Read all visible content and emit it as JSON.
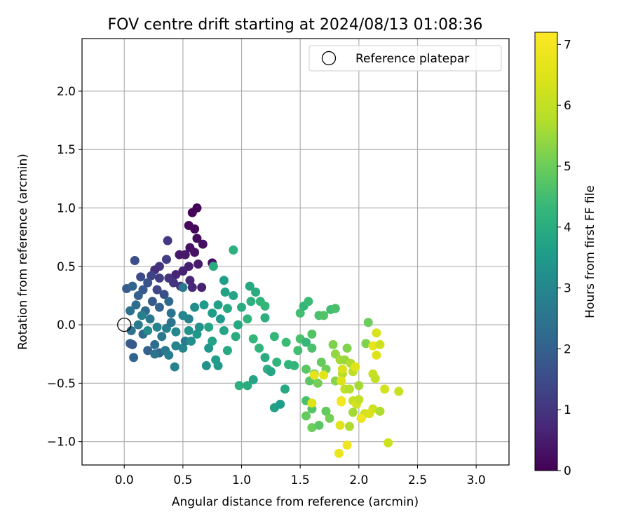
{
  "chart_data": {
    "type": "scatter",
    "title": "FOV centre drift starting at 2024/08/13 01:08:36",
    "xlabel": "Angular distance from reference (arcmin)",
    "ylabel": "Rotation from reference (arcmin)",
    "xlim": [
      -0.36,
      3.28
    ],
    "ylim": [
      -1.2,
      2.45
    ],
    "xticks": [
      "0.0",
      "0.5",
      "1.0",
      "1.5",
      "2.0",
      "2.5",
      "3.0"
    ],
    "yticks": [
      "−1.0",
      "−0.5",
      "0.0",
      "0.5",
      "1.0",
      "1.5",
      "2.0"
    ],
    "grid": true,
    "legend": {
      "position": "upper-right",
      "label": "Reference platepar"
    },
    "reference_point": {
      "x": 0.0,
      "y": 0.0
    },
    "colorbar": {
      "label": "Hours from first FF file",
      "colormap": "viridis",
      "range": [
        0,
        7.2
      ],
      "ticks": [
        "0",
        "1",
        "2",
        "3",
        "4",
        "5",
        "6",
        "7"
      ]
    },
    "points": [
      {
        "x": 0.62,
        "y": 1.0,
        "t": 0.05
      },
      {
        "x": 0.58,
        "y": 0.96,
        "t": 0.1
      },
      {
        "x": 0.55,
        "y": 0.85,
        "t": 0.12
      },
      {
        "x": 0.6,
        "y": 0.82,
        "t": 0.15
      },
      {
        "x": 0.62,
        "y": 0.74,
        "t": 0.2
      },
      {
        "x": 0.67,
        "y": 0.69,
        "t": 0.25
      },
      {
        "x": 0.56,
        "y": 0.66,
        "t": 0.3
      },
      {
        "x": 0.6,
        "y": 0.62,
        "t": 0.35
      },
      {
        "x": 0.52,
        "y": 0.6,
        "t": 0.4
      },
      {
        "x": 0.47,
        "y": 0.6,
        "t": 0.45
      },
      {
        "x": 0.63,
        "y": 0.52,
        "t": 0.5
      },
      {
        "x": 0.55,
        "y": 0.5,
        "t": 0.55
      },
      {
        "x": 0.75,
        "y": 0.53,
        "t": 0.3
      },
      {
        "x": 0.5,
        "y": 0.46,
        "t": 0.6
      },
      {
        "x": 0.44,
        "y": 0.43,
        "t": 0.65
      },
      {
        "x": 0.56,
        "y": 0.38,
        "t": 0.7
      },
      {
        "x": 0.66,
        "y": 0.32,
        "t": 0.6
      },
      {
        "x": 0.58,
        "y": 0.32,
        "t": 0.75
      },
      {
        "x": 0.48,
        "y": 0.33,
        "t": 0.8
      },
      {
        "x": 0.37,
        "y": 0.72,
        "t": 1.1
      },
      {
        "x": 0.36,
        "y": 0.56,
        "t": 1.2
      },
      {
        "x": 0.3,
        "y": 0.5,
        "t": 1.0
      },
      {
        "x": 0.26,
        "y": 0.47,
        "t": 0.9
      },
      {
        "x": 0.23,
        "y": 0.42,
        "t": 1.3
      },
      {
        "x": 0.14,
        "y": 0.41,
        "t": 1.5
      },
      {
        "x": 0.09,
        "y": 0.55,
        "t": 1.6
      },
      {
        "x": 0.3,
        "y": 0.4,
        "t": 1.2
      },
      {
        "x": 0.38,
        "y": 0.4,
        "t": 0.95
      },
      {
        "x": 0.42,
        "y": 0.36,
        "t": 1.0
      },
      {
        "x": 0.2,
        "y": 0.36,
        "t": 1.7
      },
      {
        "x": 0.16,
        "y": 0.3,
        "t": 1.8
      },
      {
        "x": 0.12,
        "y": 0.25,
        "t": 2.0
      },
      {
        "x": 0.02,
        "y": 0.31,
        "t": 1.9
      },
      {
        "x": 0.07,
        "y": 0.33,
        "t": 2.1
      },
      {
        "x": 0.28,
        "y": 0.3,
        "t": 1.4
      },
      {
        "x": 0.34,
        "y": 0.26,
        "t": 1.6
      },
      {
        "x": 0.24,
        "y": 0.2,
        "t": 1.8
      },
      {
        "x": 0.1,
        "y": 0.17,
        "t": 2.3
      },
      {
        "x": 0.05,
        "y": 0.12,
        "t": 2.4
      },
      {
        "x": 0.18,
        "y": 0.12,
        "t": 2.2
      },
      {
        "x": 0.3,
        "y": 0.15,
        "t": 2.0
      },
      {
        "x": 0.38,
        "y": 0.2,
        "t": 2.2
      },
      {
        "x": 0.5,
        "y": 0.32,
        "t": 2.6
      },
      {
        "x": 0.4,
        "y": 0.1,
        "t": 2.5
      },
      {
        "x": 0.22,
        "y": 0.05,
        "t": 2.6
      },
      {
        "x": 0.12,
        "y": 0.0,
        "t": 2.7
      },
      {
        "x": 0.06,
        "y": -0.05,
        "t": 2.4
      },
      {
        "x": 0.16,
        "y": -0.08,
        "t": 2.2
      },
      {
        "x": 0.05,
        "y": -0.16,
        "t": 2.0
      },
      {
        "x": 0.07,
        "y": -0.17,
        "t": 1.8
      },
      {
        "x": 0.08,
        "y": -0.28,
        "t": 2.1
      },
      {
        "x": 0.2,
        "y": -0.22,
        "t": 2.0
      },
      {
        "x": 0.26,
        "y": -0.17,
        "t": 2.3
      },
      {
        "x": 0.3,
        "y": -0.24,
        "t": 2.1
      },
      {
        "x": 0.26,
        "y": -0.25,
        "t": 2.5
      },
      {
        "x": 0.35,
        "y": -0.22,
        "t": 2.6
      },
      {
        "x": 0.38,
        "y": -0.26,
        "t": 2.8
      },
      {
        "x": 0.44,
        "y": -0.18,
        "t": 2.9
      },
      {
        "x": 0.5,
        "y": -0.2,
        "t": 3.0
      },
      {
        "x": 0.52,
        "y": -0.14,
        "t": 2.7
      },
      {
        "x": 0.43,
        "y": -0.36,
        "t": 2.9
      },
      {
        "x": 0.32,
        "y": -0.1,
        "t": 2.6
      },
      {
        "x": 0.36,
        "y": -0.03,
        "t": 2.8
      },
      {
        "x": 0.44,
        "y": -0.06,
        "t": 3.0
      },
      {
        "x": 0.4,
        "y": 0.02,
        "t": 2.5
      },
      {
        "x": 0.28,
        "y": -0.02,
        "t": 2.9
      },
      {
        "x": 0.2,
        "y": -0.05,
        "t": 3.1
      },
      {
        "x": 0.15,
        "y": 0.08,
        "t": 2.8
      },
      {
        "x": 0.55,
        "y": 0.05,
        "t": 2.9
      },
      {
        "x": 0.6,
        "y": 0.15,
        "t": 3.2
      },
      {
        "x": 0.5,
        "y": 0.08,
        "t": 3.0
      },
      {
        "x": 0.55,
        "y": -0.05,
        "t": 3.3
      },
      {
        "x": 0.57,
        "y": -0.14,
        "t": 3.2
      },
      {
        "x": 0.62,
        "y": -0.08,
        "t": 3.4
      },
      {
        "x": 0.64,
        "y": -0.02,
        "t": 3.3
      },
      {
        "x": 0.68,
        "y": 0.17,
        "t": 3.5
      },
      {
        "x": 0.72,
        "y": -0.2,
        "t": 3.4
      },
      {
        "x": 0.7,
        "y": -0.35,
        "t": 3.3
      },
      {
        "x": 0.78,
        "y": -0.3,
        "t": 3.6
      },
      {
        "x": 0.8,
        "y": -0.35,
        "t": 3.5
      },
      {
        "x": 0.75,
        "y": -0.14,
        "t": 3.7
      },
      {
        "x": 0.72,
        "y": -0.02,
        "t": 3.8
      },
      {
        "x": 0.75,
        "y": 0.1,
        "t": 3.6
      },
      {
        "x": 0.8,
        "y": 0.17,
        "t": 3.7
      },
      {
        "x": 0.82,
        "y": 0.05,
        "t": 3.5
      },
      {
        "x": 0.85,
        "y": -0.05,
        "t": 3.8
      },
      {
        "x": 0.88,
        "y": 0.14,
        "t": 3.9
      },
      {
        "x": 0.86,
        "y": 0.28,
        "t": 3.7
      },
      {
        "x": 0.85,
        "y": 0.38,
        "t": 3.6
      },
      {
        "x": 0.76,
        "y": 0.5,
        "t": 4.0
      },
      {
        "x": 0.93,
        "y": 0.64,
        "t": 4.1
      },
      {
        "x": 0.93,
        "y": 0.25,
        "t": 3.8
      },
      {
        "x": 0.88,
        "y": -0.22,
        "t": 3.9
      },
      {
        "x": 0.95,
        "y": -0.1,
        "t": 4.0
      },
      {
        "x": 0.97,
        "y": 0.0,
        "t": 3.9
      },
      {
        "x": 1.0,
        "y": 0.15,
        "t": 4.0
      },
      {
        "x": 0.98,
        "y": -0.52,
        "t": 4.1
      },
      {
        "x": 1.05,
        "y": -0.52,
        "t": 4.0
      },
      {
        "x": 1.1,
        "y": -0.47,
        "t": 3.8
      },
      {
        "x": 1.05,
        "y": 0.05,
        "t": 4.2
      },
      {
        "x": 1.08,
        "y": 0.2,
        "t": 4.1
      },
      {
        "x": 1.07,
        "y": 0.33,
        "t": 3.9
      },
      {
        "x": 1.12,
        "y": 0.28,
        "t": 4.0
      },
      {
        "x": 1.16,
        "y": 0.2,
        "t": 4.2
      },
      {
        "x": 1.2,
        "y": 0.16,
        "t": 4.3
      },
      {
        "x": 1.2,
        "y": 0.06,
        "t": 4.1
      },
      {
        "x": 1.1,
        "y": -0.12,
        "t": 4.3
      },
      {
        "x": 1.15,
        "y": -0.2,
        "t": 4.2
      },
      {
        "x": 1.2,
        "y": -0.28,
        "t": 4.0
      },
      {
        "x": 1.22,
        "y": -0.38,
        "t": 4.1
      },
      {
        "x": 1.3,
        "y": -0.32,
        "t": 4.2
      },
      {
        "x": 1.25,
        "y": -0.4,
        "t": 3.8
      },
      {
        "x": 1.28,
        "y": -0.71,
        "t": 3.7
      },
      {
        "x": 1.33,
        "y": -0.68,
        "t": 3.6
      },
      {
        "x": 1.37,
        "y": -0.55,
        "t": 3.9
      },
      {
        "x": 1.28,
        "y": -0.1,
        "t": 4.3
      },
      {
        "x": 1.38,
        "y": -0.15,
        "t": 4.4
      },
      {
        "x": 1.4,
        "y": -0.34,
        "t": 4.2
      },
      {
        "x": 1.45,
        "y": -0.35,
        "t": 4.3
      },
      {
        "x": 1.48,
        "y": -0.22,
        "t": 4.5
      },
      {
        "x": 1.5,
        "y": -0.12,
        "t": 4.6
      },
      {
        "x": 1.55,
        "y": -0.15,
        "t": 4.3
      },
      {
        "x": 1.5,
        "y": 0.1,
        "t": 4.5
      },
      {
        "x": 1.53,
        "y": 0.16,
        "t": 4.3
      },
      {
        "x": 1.57,
        "y": 0.2,
        "t": 4.4
      },
      {
        "x": 1.6,
        "y": -0.08,
        "t": 4.7
      },
      {
        "x": 1.6,
        "y": -0.2,
        "t": 4.6
      },
      {
        "x": 1.55,
        "y": -0.38,
        "t": 4.8
      },
      {
        "x": 1.62,
        "y": -0.42,
        "t": 4.9
      },
      {
        "x": 1.66,
        "y": 0.08,
        "t": 4.6
      },
      {
        "x": 1.7,
        "y": 0.08,
        "t": 4.7
      },
      {
        "x": 1.76,
        "y": 0.13,
        "t": 4.5
      },
      {
        "x": 1.8,
        "y": 0.14,
        "t": 4.6
      },
      {
        "x": 1.68,
        "y": -0.32,
        "t": 4.9
      },
      {
        "x": 1.72,
        "y": -0.38,
        "t": 5.0
      },
      {
        "x": 1.58,
        "y": -0.48,
        "t": 4.8
      },
      {
        "x": 1.65,
        "y": -0.5,
        "t": 5.1
      },
      {
        "x": 1.55,
        "y": -0.65,
        "t": 4.6
      },
      {
        "x": 1.6,
        "y": -0.72,
        "t": 4.7
      },
      {
        "x": 1.55,
        "y": -0.78,
        "t": 4.9
      },
      {
        "x": 1.6,
        "y": -0.88,
        "t": 5.0
      },
      {
        "x": 1.66,
        "y": -0.86,
        "t": 4.8
      },
      {
        "x": 1.72,
        "y": -0.74,
        "t": 4.9
      },
      {
        "x": 1.75,
        "y": -0.8,
        "t": 5.1
      },
      {
        "x": 1.8,
        "y": -0.48,
        "t": 5.3
      },
      {
        "x": 1.78,
        "y": -0.17,
        "t": 5.2
      },
      {
        "x": 1.8,
        "y": -0.25,
        "t": 5.4
      },
      {
        "x": 1.84,
        "y": -0.3,
        "t": 5.6
      },
      {
        "x": 1.86,
        "y": -0.42,
        "t": 5.8
      },
      {
        "x": 1.88,
        "y": -0.3,
        "t": 5.5
      },
      {
        "x": 1.9,
        "y": -0.2,
        "t": 5.2
      },
      {
        "x": 1.93,
        "y": -0.33,
        "t": 5.7
      },
      {
        "x": 1.95,
        "y": -0.4,
        "t": 5.9
      },
      {
        "x": 1.88,
        "y": -0.55,
        "t": 6.0
      },
      {
        "x": 1.92,
        "y": -0.55,
        "t": 5.8
      },
      {
        "x": 2.0,
        "y": -0.52,
        "t": 5.6
      },
      {
        "x": 1.95,
        "y": -0.65,
        "t": 6.1
      },
      {
        "x": 1.98,
        "y": -0.68,
        "t": 6.3
      },
      {
        "x": 2.0,
        "y": -0.64,
        "t": 6.0
      },
      {
        "x": 1.95,
        "y": -0.75,
        "t": 5.6
      },
      {
        "x": 2.02,
        "y": -0.8,
        "t": 5.5
      },
      {
        "x": 2.05,
        "y": -0.76,
        "t": 6.2
      },
      {
        "x": 1.92,
        "y": -0.87,
        "t": 5.7
      },
      {
        "x": 1.84,
        "y": -0.86,
        "t": 6.6
      },
      {
        "x": 1.9,
        "y": -1.03,
        "t": 6.9
      },
      {
        "x": 1.83,
        "y": -1.1,
        "t": 6.8
      },
      {
        "x": 1.85,
        "y": -0.65,
        "t": 6.7
      },
      {
        "x": 1.85,
        "y": -0.48,
        "t": 6.5
      },
      {
        "x": 1.86,
        "y": -0.38,
        "t": 6.4
      },
      {
        "x": 1.97,
        "y": -0.36,
        "t": 6.6
      },
      {
        "x": 2.08,
        "y": 0.02,
        "t": 5.0
      },
      {
        "x": 2.06,
        "y": -0.16,
        "t": 5.2
      },
      {
        "x": 2.12,
        "y": -0.18,
        "t": 6.7
      },
      {
        "x": 2.15,
        "y": -0.07,
        "t": 6.4
      },
      {
        "x": 2.18,
        "y": -0.17,
        "t": 6.2
      },
      {
        "x": 2.15,
        "y": -0.26,
        "t": 6.5
      },
      {
        "x": 2.12,
        "y": -0.42,
        "t": 6.1
      },
      {
        "x": 2.14,
        "y": -0.46,
        "t": 6.0
      },
      {
        "x": 2.22,
        "y": -0.55,
        "t": 6.3
      },
      {
        "x": 2.12,
        "y": -0.72,
        "t": 6.2
      },
      {
        "x": 2.09,
        "y": -0.76,
        "t": 6.4
      },
      {
        "x": 2.18,
        "y": -0.74,
        "t": 5.7
      },
      {
        "x": 2.25,
        "y": -1.01,
        "t": 6.2
      },
      {
        "x": 2.34,
        "y": -0.57,
        "t": 6.1
      },
      {
        "x": 1.7,
        "y": -0.43,
        "t": 6.6
      },
      {
        "x": 1.62,
        "y": -0.43,
        "t": 6.7
      },
      {
        "x": 1.6,
        "y": -0.67,
        "t": 6.5
      },
      {
        "x": 2.02,
        "y": -0.8,
        "t": 6.9
      },
      {
        "x": 1.85,
        "y": -0.66,
        "t": 7.0
      }
    ]
  }
}
